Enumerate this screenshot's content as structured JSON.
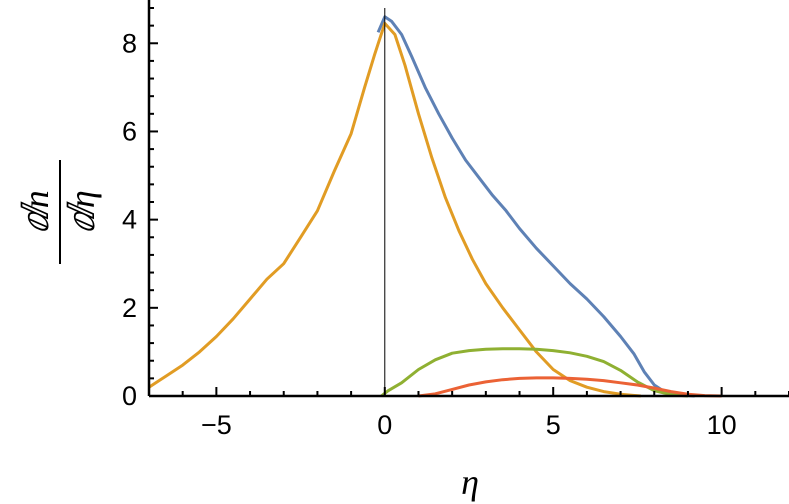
{
  "chart_data": {
    "type": "line",
    "title": "",
    "xlabel": "η",
    "ylabel_numerator": "ⅆn",
    "ylabel_denominator": "ⅆη",
    "xlim": [
      -7,
      12
    ],
    "ylim": [
      0,
      8.8
    ],
    "x_ticks": [
      -5,
      0,
      5,
      10
    ],
    "x_tick_labels": [
      "−5",
      "0",
      "5",
      "10"
    ],
    "y_ticks": [
      0,
      2,
      4,
      6,
      8
    ],
    "y_tick_labels": [
      "0",
      "2",
      "4",
      "6",
      "8"
    ],
    "grid": false,
    "legend": "none",
    "series": [
      {
        "color": "#5e81b5",
        "points": [
          [
            -0.2,
            8.25
          ],
          [
            0,
            8.6
          ],
          [
            0.2,
            8.5
          ],
          [
            0.5,
            8.2
          ],
          [
            0.8,
            7.7
          ],
          [
            1.2,
            7.0
          ],
          [
            1.6,
            6.4
          ],
          [
            2.0,
            5.85
          ],
          [
            2.4,
            5.35
          ],
          [
            2.8,
            4.95
          ],
          [
            3.2,
            4.55
          ],
          [
            3.6,
            4.2
          ],
          [
            4.0,
            3.8
          ],
          [
            4.5,
            3.35
          ],
          [
            5.0,
            2.95
          ],
          [
            5.5,
            2.55
          ],
          [
            6.0,
            2.2
          ],
          [
            6.5,
            1.8
          ],
          [
            7.0,
            1.35
          ],
          [
            7.4,
            0.95
          ],
          [
            7.7,
            0.55
          ],
          [
            8.0,
            0.25
          ],
          [
            8.3,
            0.1
          ],
          [
            8.7,
            0.03
          ],
          [
            9.2,
            0.0
          ]
        ]
      },
      {
        "color": "#e19c24",
        "points": [
          [
            -7,
            0.2
          ],
          [
            -6.5,
            0.45
          ],
          [
            -6,
            0.7
          ],
          [
            -5.5,
            1.0
          ],
          [
            -5,
            1.35
          ],
          [
            -4.5,
            1.75
          ],
          [
            -4,
            2.2
          ],
          [
            -3.5,
            2.65
          ],
          [
            -3,
            3.0
          ],
          [
            -2.5,
            3.6
          ],
          [
            -2,
            4.2
          ],
          [
            -1.5,
            5.1
          ],
          [
            -1,
            5.95
          ],
          [
            -0.6,
            7.0
          ],
          [
            -0.3,
            7.75
          ],
          [
            0,
            8.45
          ],
          [
            0.3,
            8.2
          ],
          [
            0.6,
            7.5
          ],
          [
            1.0,
            6.4
          ],
          [
            1.4,
            5.4
          ],
          [
            1.8,
            4.5
          ],
          [
            2.2,
            3.75
          ],
          [
            2.6,
            3.1
          ],
          [
            3.0,
            2.55
          ],
          [
            3.5,
            2.0
          ],
          [
            4.0,
            1.5
          ],
          [
            4.5,
            1.0
          ],
          [
            5.0,
            0.6
          ],
          [
            5.5,
            0.35
          ],
          [
            6.0,
            0.2
          ],
          [
            6.5,
            0.1
          ],
          [
            7.0,
            0.04
          ],
          [
            7.6,
            0.0
          ]
        ]
      },
      {
        "color": "#8fb032",
        "points": [
          [
            -0.1,
            0.0
          ],
          [
            0.1,
            0.12
          ],
          [
            0.5,
            0.3
          ],
          [
            1.0,
            0.6
          ],
          [
            1.5,
            0.82
          ],
          [
            2.0,
            0.97
          ],
          [
            2.5,
            1.03
          ],
          [
            3.0,
            1.06
          ],
          [
            3.5,
            1.07
          ],
          [
            4.0,
            1.07
          ],
          [
            4.5,
            1.06
          ],
          [
            5.0,
            1.03
          ],
          [
            5.5,
            0.98
          ],
          [
            6.0,
            0.9
          ],
          [
            6.5,
            0.78
          ],
          [
            7.0,
            0.58
          ],
          [
            7.5,
            0.32
          ],
          [
            8.0,
            0.12
          ],
          [
            8.5,
            0.03
          ],
          [
            9.0,
            0.0
          ]
        ]
      },
      {
        "color": "#eb6235",
        "points": [
          [
            1.0,
            0.0
          ],
          [
            1.5,
            0.05
          ],
          [
            2.0,
            0.15
          ],
          [
            2.5,
            0.25
          ],
          [
            3.0,
            0.32
          ],
          [
            3.5,
            0.37
          ],
          [
            4.0,
            0.4
          ],
          [
            4.5,
            0.41
          ],
          [
            5.0,
            0.41
          ],
          [
            5.5,
            0.4
          ],
          [
            6.0,
            0.38
          ],
          [
            6.5,
            0.35
          ],
          [
            7.0,
            0.3
          ],
          [
            7.5,
            0.25
          ],
          [
            8.0,
            0.18
          ],
          [
            8.5,
            0.1
          ],
          [
            9.0,
            0.04
          ],
          [
            9.5,
            0.01
          ],
          [
            10.0,
            0.0
          ]
        ]
      }
    ]
  }
}
